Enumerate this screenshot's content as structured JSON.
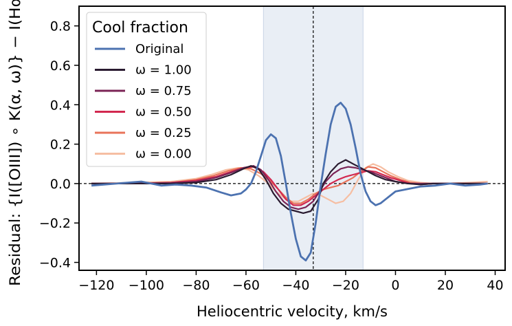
{
  "chart_data": {
    "type": "line",
    "xlabel": "Heliocentric velocity, km/s",
    "ylabel": "Residual: {I([OIII]) ∘ K(α, ω)} − I(Hα)",
    "xlim": [
      -127,
      44
    ],
    "ylim": [
      -0.44,
      0.9
    ],
    "xticks": [
      -120,
      -100,
      -80,
      -60,
      -40,
      -20,
      0,
      20,
      40
    ],
    "yticks": [
      -0.4,
      -0.2,
      0.0,
      0.2,
      0.4,
      0.6,
      0.8
    ],
    "xtick_labels": [
      "−120",
      "−100",
      "−80",
      "−60",
      "−40",
      "−20",
      "0",
      "20",
      "40"
    ],
    "ytick_labels": [
      "−0.4",
      "−0.2",
      "0.0",
      "0.2",
      "0.4",
      "0.6",
      "0.8"
    ],
    "shaded_band": [
      -53,
      -13
    ],
    "vline": -33,
    "hline": 0.0,
    "legend": {
      "title": "Cool fraction",
      "placement": "top-left"
    },
    "series": [
      {
        "name": "Original",
        "color": "#4c72b0",
        "x": [
          -122,
          -112,
          -102,
          -94,
          -88,
          -82,
          -76,
          -70,
          -66,
          -62,
          -60,
          -58,
          -56,
          -54,
          -52,
          -50,
          -48,
          -46,
          -44,
          -42,
          -40,
          -38,
          -36,
          -34,
          -32,
          -30,
          -28,
          -26,
          -24,
          -22,
          -20,
          -18,
          -16,
          -14,
          -12,
          -10,
          -8,
          -6,
          -4,
          -2,
          0,
          4,
          10,
          16,
          22,
          28,
          34,
          37
        ],
        "y": [
          -0.01,
          0.0,
          0.01,
          -0.01,
          -0.005,
          -0.01,
          -0.02,
          -0.045,
          -0.06,
          -0.05,
          -0.03,
          0.0,
          0.06,
          0.14,
          0.22,
          0.25,
          0.23,
          0.14,
          0.0,
          -0.15,
          -0.28,
          -0.37,
          -0.39,
          -0.35,
          -0.2,
          -0.01,
          0.15,
          0.3,
          0.39,
          0.41,
          0.38,
          0.3,
          0.18,
          0.05,
          -0.04,
          -0.09,
          -0.11,
          -0.1,
          -0.08,
          -0.06,
          -0.04,
          -0.03,
          -0.015,
          -0.01,
          0.0,
          -0.01,
          -0.005,
          0.0
        ]
      },
      {
        "name": "ω = 1.00",
        "color": "#2a1b30",
        "x": [
          -122,
          -105,
          -90,
          -80,
          -72,
          -66,
          -61,
          -58,
          -55,
          -52,
          -49,
          -46,
          -43,
          -40,
          -37,
          -34,
          -31,
          -29,
          -26,
          -23,
          -20,
          -17,
          -14,
          -11,
          -8,
          -4,
          0,
          5,
          10,
          15,
          20,
          30,
          37
        ],
        "y": [
          0.0,
          0.0,
          0.0,
          0.005,
          0.02,
          0.045,
          0.075,
          0.09,
          0.075,
          0.02,
          -0.05,
          -0.1,
          -0.13,
          -0.14,
          -0.15,
          -0.14,
          -0.08,
          0.0,
          0.06,
          0.1,
          0.12,
          0.1,
          0.08,
          0.06,
          0.04,
          0.02,
          0.01,
          0.0,
          -0.005,
          0.0,
          0.0,
          0.0,
          0.0
        ]
      },
      {
        "name": "ω = 0.75",
        "color": "#7b2456",
        "x": [
          -122,
          -105,
          -90,
          -80,
          -72,
          -66,
          -61,
          -57,
          -54,
          -51,
          -48,
          -45,
          -42,
          -39,
          -36,
          -33,
          -31,
          -28,
          -25,
          -22,
          -19,
          -16,
          -13,
          -10,
          -7,
          -3,
          0,
          5,
          10,
          15,
          20,
          30,
          37
        ],
        "y": [
          0.0,
          0.0,
          0.003,
          0.01,
          0.03,
          0.055,
          0.08,
          0.09,
          0.07,
          0.02,
          -0.04,
          -0.09,
          -0.12,
          -0.13,
          -0.12,
          -0.09,
          -0.05,
          0.01,
          0.05,
          0.075,
          0.085,
          0.08,
          0.07,
          0.06,
          0.045,
          0.025,
          0.01,
          0.0,
          0.0,
          0.0,
          0.0,
          0.0,
          0.0
        ]
      },
      {
        "name": "ω = 0.50",
        "color": "#d2284f",
        "x": [
          -122,
          -105,
          -90,
          -80,
          -72,
          -66,
          -61,
          -57,
          -53,
          -50,
          -47,
          -44,
          -41,
          -38,
          -35,
          -32,
          -29,
          -26,
          -23,
          -20,
          -17,
          -14,
          -11,
          -8,
          -5,
          -2,
          2,
          6,
          10,
          15,
          20,
          30,
          37
        ],
        "y": [
          0.0,
          0.0,
          0.005,
          0.015,
          0.035,
          0.06,
          0.08,
          0.085,
          0.06,
          0.02,
          -0.03,
          -0.08,
          -0.11,
          -0.11,
          -0.09,
          -0.06,
          -0.03,
          0.0,
          0.02,
          0.035,
          0.045,
          0.055,
          0.065,
          0.06,
          0.045,
          0.03,
          0.015,
          0.0,
          -0.005,
          0.0,
          0.0,
          0.0,
          0.0
        ]
      },
      {
        "name": "ω = 0.25",
        "color": "#e8735a",
        "x": [
          -122,
          -105,
          -90,
          -80,
          -73,
          -67,
          -62,
          -58,
          -54,
          -50,
          -47,
          -44,
          -41,
          -38,
          -35,
          -32,
          -29,
          -26,
          -23,
          -20,
          -17,
          -14,
          -11,
          -8,
          -5,
          -2,
          2,
          6,
          10,
          15,
          20,
          30,
          37
        ],
        "y": [
          0.0,
          0.0,
          0.005,
          0.02,
          0.04,
          0.065,
          0.08,
          0.075,
          0.05,
          0.01,
          -0.03,
          -0.07,
          -0.1,
          -0.1,
          -0.08,
          -0.05,
          -0.03,
          -0.02,
          -0.01,
          0.01,
          0.03,
          0.06,
          0.085,
          0.08,
          0.06,
          0.04,
          0.02,
          0.005,
          0.0,
          0.0,
          0.0,
          0.0,
          0.0
        ]
      },
      {
        "name": "ω = 0.00",
        "color": "#f6bea2",
        "x": [
          -122,
          -105,
          -90,
          -80,
          -74,
          -68,
          -63,
          -59,
          -55,
          -51,
          -48,
          -45,
          -42,
          -39,
          -36,
          -33,
          -30,
          -27,
          -24,
          -21,
          -18,
          -15,
          -12,
          -9,
          -6,
          -3,
          1,
          5,
          10,
          15,
          20,
          30,
          37
        ],
        "y": [
          0.0,
          0.005,
          0.01,
          0.025,
          0.045,
          0.07,
          0.08,
          0.07,
          0.04,
          0.0,
          -0.04,
          -0.07,
          -0.09,
          -0.09,
          -0.07,
          -0.05,
          -0.06,
          -0.08,
          -0.1,
          -0.09,
          -0.05,
          0.02,
          0.08,
          0.1,
          0.085,
          0.06,
          0.035,
          0.015,
          0.005,
          0.0,
          0.0,
          0.005,
          0.01
        ]
      }
    ]
  }
}
